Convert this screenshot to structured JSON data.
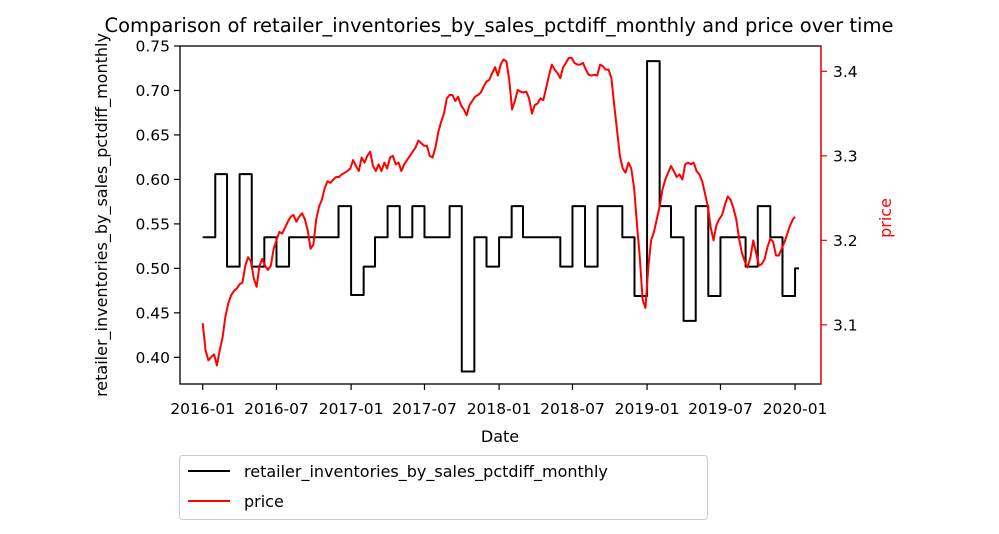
{
  "chart_data": {
    "type": "line",
    "title": "Comparison of retailer_inventories_by_sales_pctdiff_monthly and price over time",
    "xlabel": "Date",
    "ylabel_left": "retailer_inventories_by_sales_pctdiff_monthly",
    "ylabel_right": "price",
    "x_ticks": [
      "2016-01",
      "2016-07",
      "2017-01",
      "2017-07",
      "2018-01",
      "2018-07",
      "2019-01",
      "2019-07",
      "2020-01"
    ],
    "xlim": [
      "2015-11-06",
      "2020-03-05"
    ],
    "ylim_left": [
      0.37,
      0.75
    ],
    "yticks_left": [
      "0.40",
      "0.45",
      "0.50",
      "0.55",
      "0.60",
      "0.65",
      "0.70",
      "0.75"
    ],
    "ylim_right": [
      3.03,
      3.43
    ],
    "yticks_right": [
      "3.1",
      "3.2",
      "3.3",
      "3.4"
    ],
    "grid": false,
    "legend": "below plot, left",
    "series": [
      {
        "name": "retailer_inventories_by_sales_pctdiff_monthly",
        "color": "#000000",
        "axis": "left",
        "step": true,
        "points": [
          [
            "2016-01-01",
            0.535
          ],
          [
            "2016-02-01",
            0.606
          ],
          [
            "2016-03-01",
            0.502
          ],
          [
            "2016-04-01",
            0.606
          ],
          [
            "2016-05-01",
            0.502
          ],
          [
            "2016-06-01",
            0.535
          ],
          [
            "2016-07-01",
            0.502
          ],
          [
            "2016-08-01",
            0.535
          ],
          [
            "2016-09-01",
            0.535
          ],
          [
            "2016-10-01",
            0.535
          ],
          [
            "2016-11-01",
            0.535
          ],
          [
            "2016-12-01",
            0.57
          ],
          [
            "2017-01-01",
            0.47
          ],
          [
            "2017-02-01",
            0.502
          ],
          [
            "2017-03-01",
            0.535
          ],
          [
            "2017-04-01",
            0.57
          ],
          [
            "2017-05-01",
            0.535
          ],
          [
            "2017-06-01",
            0.57
          ],
          [
            "2017-07-01",
            0.535
          ],
          [
            "2017-08-01",
            0.535
          ],
          [
            "2017-09-01",
            0.57
          ],
          [
            "2017-10-01",
            0.384
          ],
          [
            "2017-11-01",
            0.535
          ],
          [
            "2017-12-01",
            0.502
          ],
          [
            "2018-01-01",
            0.535
          ],
          [
            "2018-02-01",
            0.57
          ],
          [
            "2018-03-01",
            0.535
          ],
          [
            "2018-04-01",
            0.535
          ],
          [
            "2018-05-01",
            0.535
          ],
          [
            "2018-06-01",
            0.502
          ],
          [
            "2018-07-01",
            0.57
          ],
          [
            "2018-08-01",
            0.502
          ],
          [
            "2018-09-01",
            0.57
          ],
          [
            "2018-10-01",
            0.57
          ],
          [
            "2018-11-01",
            0.535
          ],
          [
            "2018-12-01",
            0.469
          ],
          [
            "2019-01-01",
            0.733
          ],
          [
            "2019-02-01",
            0.57
          ],
          [
            "2019-03-01",
            0.535
          ],
          [
            "2019-04-01",
            0.441
          ],
          [
            "2019-05-01",
            0.57
          ],
          [
            "2019-06-01",
            0.469
          ],
          [
            "2019-07-01",
            0.535
          ],
          [
            "2019-08-01",
            0.535
          ],
          [
            "2019-09-01",
            0.502
          ],
          [
            "2019-10-01",
            0.57
          ],
          [
            "2019-11-01",
            0.535
          ],
          [
            "2019-12-01",
            0.469
          ],
          [
            "2020-01-01",
            0.5
          ]
        ]
      },
      {
        "name": "price",
        "color": "#ff0000",
        "axis": "right",
        "step": false,
        "points": [
          [
            "2016-01-01",
            3.102
          ],
          [
            "2016-01-08",
            3.07
          ],
          [
            "2016-01-15",
            3.058
          ],
          [
            "2016-01-22",
            3.062
          ],
          [
            "2016-01-29",
            3.065
          ],
          [
            "2016-02-05",
            3.052
          ],
          [
            "2016-02-12",
            3.07
          ],
          [
            "2016-02-19",
            3.085
          ],
          [
            "2016-02-26",
            3.11
          ],
          [
            "2016-03-04",
            3.125
          ],
          [
            "2016-03-11",
            3.135
          ],
          [
            "2016-03-18",
            3.14
          ],
          [
            "2016-03-25",
            3.143
          ],
          [
            "2016-04-01",
            3.148
          ],
          [
            "2016-04-08",
            3.15
          ],
          [
            "2016-04-15",
            3.17
          ],
          [
            "2016-04-22",
            3.18
          ],
          [
            "2016-04-29",
            3.175
          ],
          [
            "2016-05-06",
            3.155
          ],
          [
            "2016-05-13",
            3.145
          ],
          [
            "2016-05-20",
            3.17
          ],
          [
            "2016-05-27",
            3.178
          ],
          [
            "2016-06-03",
            3.17
          ],
          [
            "2016-06-10",
            3.165
          ],
          [
            "2016-06-17",
            3.17
          ],
          [
            "2016-06-24",
            3.19
          ],
          [
            "2016-07-01",
            3.2
          ],
          [
            "2016-07-08",
            3.21
          ],
          [
            "2016-07-15",
            3.208
          ],
          [
            "2016-07-22",
            3.215
          ],
          [
            "2016-07-29",
            3.222
          ],
          [
            "2016-08-05",
            3.228
          ],
          [
            "2016-08-12",
            3.23
          ],
          [
            "2016-08-19",
            3.222
          ],
          [
            "2016-08-26",
            3.228
          ],
          [
            "2016-09-02",
            3.232
          ],
          [
            "2016-09-09",
            3.225
          ],
          [
            "2016-09-16",
            3.212
          ],
          [
            "2016-09-23",
            3.19
          ],
          [
            "2016-09-30",
            3.195
          ],
          [
            "2016-10-07",
            3.225
          ],
          [
            "2016-10-14",
            3.24
          ],
          [
            "2016-10-21",
            3.248
          ],
          [
            "2016-10-28",
            3.262
          ],
          [
            "2016-11-04",
            3.27
          ],
          [
            "2016-11-11",
            3.268
          ],
          [
            "2016-11-18",
            3.272
          ],
          [
            "2016-11-25",
            3.275
          ],
          [
            "2016-12-02",
            3.275
          ],
          [
            "2016-12-09",
            3.278
          ],
          [
            "2016-12-16",
            3.28
          ],
          [
            "2016-12-23",
            3.282
          ],
          [
            "2016-12-30",
            3.285
          ],
          [
            "2017-01-06",
            3.295
          ],
          [
            "2017-01-13",
            3.288
          ],
          [
            "2017-01-20",
            3.282
          ],
          [
            "2017-01-27",
            3.298
          ],
          [
            "2017-02-03",
            3.292
          ],
          [
            "2017-02-10",
            3.3
          ],
          [
            "2017-02-17",
            3.305
          ],
          [
            "2017-02-24",
            3.288
          ],
          [
            "2017-03-03",
            3.282
          ],
          [
            "2017-03-10",
            3.29
          ],
          [
            "2017-03-17",
            3.282
          ],
          [
            "2017-03-24",
            3.292
          ],
          [
            "2017-03-31",
            3.285
          ],
          [
            "2017-04-07",
            3.298
          ],
          [
            "2017-04-14",
            3.3
          ],
          [
            "2017-04-21",
            3.29
          ],
          [
            "2017-04-28",
            3.292
          ],
          [
            "2017-05-05",
            3.282
          ],
          [
            "2017-05-12",
            3.29
          ],
          [
            "2017-05-19",
            3.295
          ],
          [
            "2017-05-26",
            3.3
          ],
          [
            "2017-06-02",
            3.305
          ],
          [
            "2017-06-09",
            3.31
          ],
          [
            "2017-06-16",
            3.318
          ],
          [
            "2017-06-23",
            3.315
          ],
          [
            "2017-06-30",
            3.312
          ],
          [
            "2017-07-07",
            3.312
          ],
          [
            "2017-07-14",
            3.3
          ],
          [
            "2017-07-21",
            3.298
          ],
          [
            "2017-07-28",
            3.31
          ],
          [
            "2017-08-04",
            3.328
          ],
          [
            "2017-08-11",
            3.34
          ],
          [
            "2017-08-18",
            3.35
          ],
          [
            "2017-08-25",
            3.368
          ],
          [
            "2017-09-01",
            3.372
          ],
          [
            "2017-09-08",
            3.372
          ],
          [
            "2017-09-15",
            3.365
          ],
          [
            "2017-09-22",
            3.37
          ],
          [
            "2017-09-29",
            3.36
          ],
          [
            "2017-10-06",
            3.355
          ],
          [
            "2017-10-13",
            3.348
          ],
          [
            "2017-10-20",
            3.36
          ],
          [
            "2017-10-27",
            3.365
          ],
          [
            "2017-11-03",
            3.37
          ],
          [
            "2017-11-10",
            3.372
          ],
          [
            "2017-11-17",
            3.375
          ],
          [
            "2017-11-24",
            3.382
          ],
          [
            "2017-12-01",
            3.388
          ],
          [
            "2017-12-08",
            3.39
          ],
          [
            "2017-12-15",
            3.398
          ],
          [
            "2017-12-22",
            3.405
          ],
          [
            "2017-12-29",
            3.395
          ],
          [
            "2018-01-05",
            3.408
          ],
          [
            "2018-01-12",
            3.414
          ],
          [
            "2018-01-19",
            3.412
          ],
          [
            "2018-01-26",
            3.39
          ],
          [
            "2018-02-02",
            3.355
          ],
          [
            "2018-02-09",
            3.365
          ],
          [
            "2018-02-16",
            3.378
          ],
          [
            "2018-02-23",
            3.376
          ],
          [
            "2018-03-02",
            3.375
          ],
          [
            "2018-03-09",
            3.376
          ],
          [
            "2018-03-16",
            3.368
          ],
          [
            "2018-03-23",
            3.35
          ],
          [
            "2018-03-30",
            3.36
          ],
          [
            "2018-04-06",
            3.362
          ],
          [
            "2018-04-13",
            3.368
          ],
          [
            "2018-04-20",
            3.366
          ],
          [
            "2018-04-27",
            3.38
          ],
          [
            "2018-05-04",
            3.395
          ],
          [
            "2018-05-11",
            3.408
          ],
          [
            "2018-05-18",
            3.402
          ],
          [
            "2018-05-25",
            3.398
          ],
          [
            "2018-06-01",
            3.392
          ],
          [
            "2018-06-08",
            3.405
          ],
          [
            "2018-06-15",
            3.41
          ],
          [
            "2018-06-22",
            3.416
          ],
          [
            "2018-06-29",
            3.416
          ],
          [
            "2018-07-06",
            3.41
          ],
          [
            "2018-07-13",
            3.408
          ],
          [
            "2018-07-20",
            3.408
          ],
          [
            "2018-07-27",
            3.41
          ],
          [
            "2018-08-03",
            3.402
          ],
          [
            "2018-08-10",
            3.396
          ],
          [
            "2018-08-17",
            3.395
          ],
          [
            "2018-08-24",
            3.396
          ],
          [
            "2018-08-31",
            3.395
          ],
          [
            "2018-09-07",
            3.408
          ],
          [
            "2018-09-14",
            3.406
          ],
          [
            "2018-09-21",
            3.402
          ],
          [
            "2018-09-28",
            3.402
          ],
          [
            "2018-10-05",
            3.392
          ],
          [
            "2018-10-12",
            3.36
          ],
          [
            "2018-10-19",
            3.33
          ],
          [
            "2018-10-26",
            3.3
          ],
          [
            "2018-11-02",
            3.285
          ],
          [
            "2018-11-09",
            3.28
          ],
          [
            "2018-11-16",
            3.292
          ],
          [
            "2018-11-23",
            3.285
          ],
          [
            "2018-11-30",
            3.262
          ],
          [
            "2018-12-07",
            3.22
          ],
          [
            "2018-12-14",
            3.18
          ],
          [
            "2018-12-21",
            3.13
          ],
          [
            "2018-12-28",
            3.12
          ],
          [
            "2019-01-04",
            3.168
          ],
          [
            "2019-01-11",
            3.2
          ],
          [
            "2019-01-18",
            3.21
          ],
          [
            "2019-01-25",
            3.225
          ],
          [
            "2019-02-01",
            3.24
          ],
          [
            "2019-02-08",
            3.26
          ],
          [
            "2019-02-15",
            3.272
          ],
          [
            "2019-02-22",
            3.28
          ],
          [
            "2019-03-01",
            3.288
          ],
          [
            "2019-03-08",
            3.282
          ],
          [
            "2019-03-15",
            3.275
          ],
          [
            "2019-03-22",
            3.278
          ],
          [
            "2019-03-29",
            3.272
          ],
          [
            "2019-04-05",
            3.29
          ],
          [
            "2019-04-12",
            3.292
          ],
          [
            "2019-04-19",
            3.29
          ],
          [
            "2019-04-26",
            3.292
          ],
          [
            "2019-05-03",
            3.282
          ],
          [
            "2019-05-10",
            3.278
          ],
          [
            "2019-05-17",
            3.27
          ],
          [
            "2019-05-24",
            3.255
          ],
          [
            "2019-05-31",
            3.24
          ],
          [
            "2019-06-07",
            3.215
          ],
          [
            "2019-06-14",
            3.2
          ],
          [
            "2019-06-21",
            3.218
          ],
          [
            "2019-06-28",
            3.225
          ],
          [
            "2019-07-05",
            3.23
          ],
          [
            "2019-07-12",
            3.242
          ],
          [
            "2019-07-19",
            3.252
          ],
          [
            "2019-07-26",
            3.248
          ],
          [
            "2019-08-02",
            3.238
          ],
          [
            "2019-08-09",
            3.225
          ],
          [
            "2019-08-16",
            3.202
          ],
          [
            "2019-08-23",
            3.185
          ],
          [
            "2019-08-30",
            3.175
          ],
          [
            "2019-09-06",
            3.168
          ],
          [
            "2019-09-13",
            3.18
          ],
          [
            "2019-09-20",
            3.2
          ],
          [
            "2019-09-27",
            3.185
          ],
          [
            "2019-10-04",
            3.17
          ],
          [
            "2019-10-11",
            3.172
          ],
          [
            "2019-10-18",
            3.178
          ],
          [
            "2019-10-25",
            3.192
          ],
          [
            "2019-11-01",
            3.202
          ],
          [
            "2019-11-08",
            3.198
          ],
          [
            "2019-11-15",
            3.182
          ],
          [
            "2019-11-22",
            3.182
          ],
          [
            "2019-11-29",
            3.19
          ],
          [
            "2019-12-06",
            3.198
          ],
          [
            "2019-12-13",
            3.208
          ],
          [
            "2019-12-20",
            3.218
          ],
          [
            "2019-12-27",
            3.225
          ],
          [
            "2020-01-01",
            3.228
          ]
        ]
      }
    ]
  }
}
